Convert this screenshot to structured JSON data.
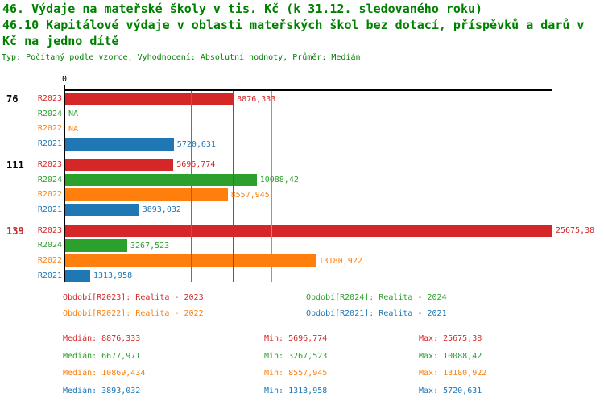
{
  "title": {
    "line1": "46. Výdaje na mateřské školy v tis. Kč (k 31.12. sledovaného roku)",
    "line2": "46.10 Kapitálové výdaje v oblasti mateřských škol bez dotací, příspěvků a darů v",
    "line3": "Kč na jedno dítě",
    "subtitle": "Typ: Počítaný podle vzorce, Vyhodnocení: Absolutní hodnoty, Průměr: Medián"
  },
  "colors": {
    "red": "#d62728",
    "green": "#2ca02c",
    "orange": "#ff7f0e",
    "blue": "#1f77b4",
    "title_green": "#008000",
    "black": "#000000"
  },
  "chart_data": {
    "type": "bar",
    "orientation": "horizontal",
    "unit": "Kč na jedno dítě",
    "axis": {
      "min": 0,
      "max": 25675.38,
      "zero_label": "0",
      "grid": false
    },
    "series_colors": {
      "R2023": "red",
      "R2024": "green",
      "R2022": "orange",
      "R2021": "blue"
    },
    "median_lines": [
      {
        "series": "R2023",
        "color": "red",
        "value": 8876.333
      },
      {
        "series": "R2024",
        "color": "green",
        "value": 6677.971
      },
      {
        "series": "R2022",
        "color": "orange",
        "value": 10869.434
      },
      {
        "series": "R2021",
        "color": "blue",
        "value": 3893.032
      }
    ],
    "groups": [
      {
        "label": "76",
        "label_color": "black",
        "bars": [
          {
            "series": "R2023",
            "color": "red",
            "value": 8876.333,
            "label": "8876,333"
          },
          {
            "series": "R2024",
            "color": "green",
            "value": null,
            "label": "NA"
          },
          {
            "series": "R2022",
            "color": "orange",
            "value": null,
            "label": "NA"
          },
          {
            "series": "R2021",
            "color": "blue",
            "value": 5720.631,
            "label": "5720,631"
          }
        ]
      },
      {
        "label": "111",
        "label_color": "black",
        "bars": [
          {
            "series": "R2023",
            "color": "red",
            "value": 5696.774,
            "label": "5696,774"
          },
          {
            "series": "R2024",
            "color": "green",
            "value": 10088.42,
            "label": "10088,42"
          },
          {
            "series": "R2022",
            "color": "orange",
            "value": 8557.945,
            "label": "8557,945"
          },
          {
            "series": "R2021",
            "color": "blue",
            "value": 3893.032,
            "label": "3893,032"
          }
        ]
      },
      {
        "label": "139",
        "label_color": "red",
        "bars": [
          {
            "series": "R2023",
            "color": "red",
            "value": 25675.38,
            "label": "25675,38"
          },
          {
            "series": "R2024",
            "color": "green",
            "value": 3267.523,
            "label": "3267,523"
          },
          {
            "series": "R2022",
            "color": "orange",
            "value": 13180.922,
            "label": "13180,922"
          },
          {
            "series": "R2021",
            "color": "blue",
            "value": 1313.958,
            "label": "1313,958"
          }
        ]
      }
    ]
  },
  "legend": [
    {
      "text": "Období[R2023]: Realita - 2023",
      "color": "red"
    },
    {
      "text": "Období[R2024]: Realita - 2024",
      "color": "green"
    },
    {
      "text": "Období[R2022]: Realita - 2022",
      "color": "orange"
    },
    {
      "text": "Období[R2021]: Realita - 2021",
      "color": "blue"
    }
  ],
  "stats": [
    {
      "color": "red",
      "median": "Medián: 8876,333",
      "min": "Min: 5696,774",
      "max": "Max: 25675,38"
    },
    {
      "color": "green",
      "median": "Medián: 6677,971",
      "min": "Min: 3267,523",
      "max": "Max: 10088,42"
    },
    {
      "color": "orange",
      "median": "Medián: 10869,434",
      "min": "Min: 8557,945",
      "max": "Max: 13180,922"
    },
    {
      "color": "blue",
      "median": "Medián: 3893,032",
      "min": "Min: 1313,958",
      "max": "Max: 5720,631"
    }
  ]
}
